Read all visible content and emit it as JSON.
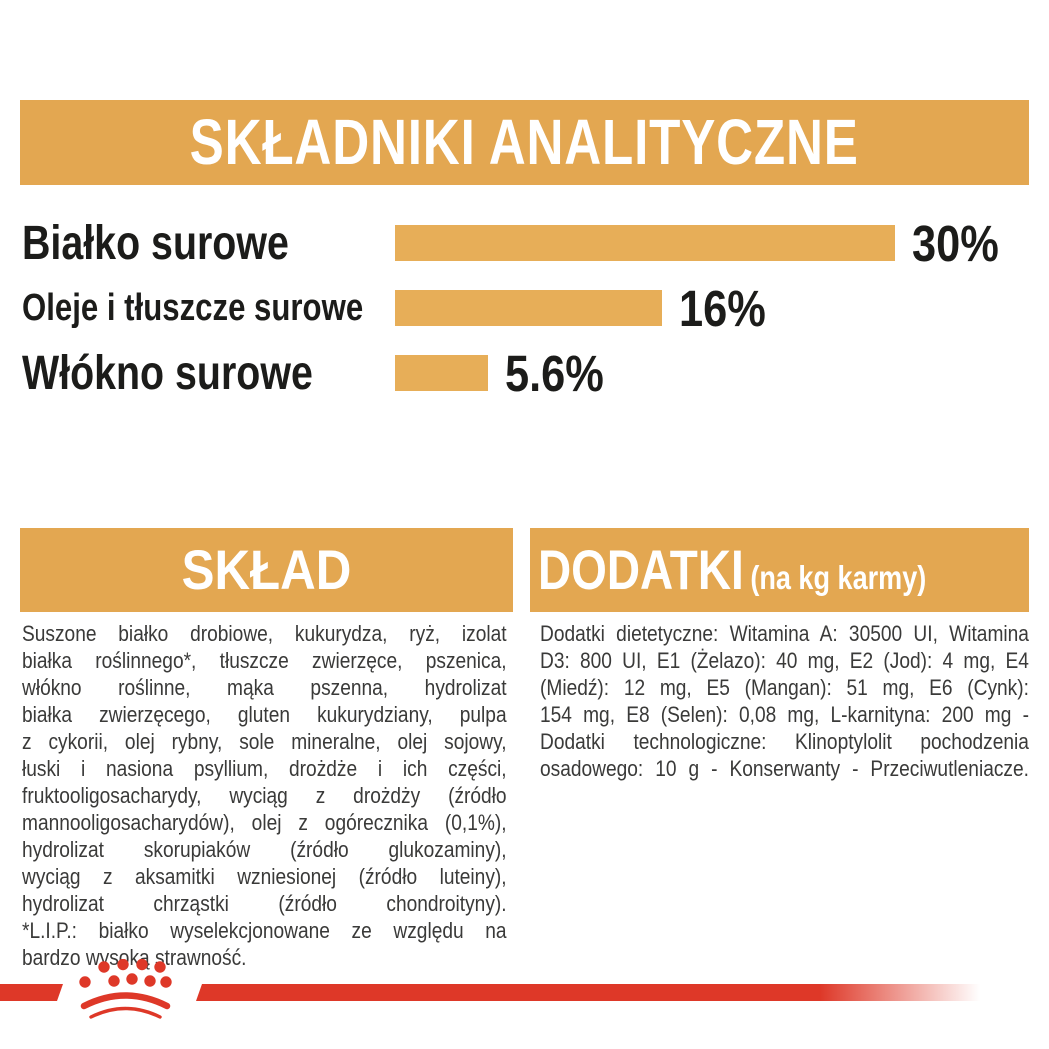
{
  "header": {
    "title": "SKŁADNIKI ANALITYCZNE"
  },
  "chart_data": {
    "type": "bar",
    "orientation": "horizontal",
    "title": "SKŁADNIKI ANALITYCZNE",
    "categories": [
      "Białko surowe",
      "Oleje i tłuszcze surowe",
      "Włókno surowe"
    ],
    "values": [
      30,
      16,
      5.6
    ],
    "value_labels": [
      "30%",
      "16%",
      "5.6%"
    ],
    "unit": "%",
    "xlim": [
      0,
      30
    ],
    "bar_color": "#E7AE58",
    "grid": false,
    "legend": false
  },
  "sklad": {
    "heading": "SKŁAD",
    "lines": [
      "Suszone białko drobiowe, kukurydza, ryż, izolat",
      "białka roślinnego*, tłuszcze zwierzęce, pszenica,",
      "włókno roślinne, mąka pszenna, hydrolizat",
      "białka zwierzęcego, gluten kukurydziany, pulpa",
      "z cykorii, olej rybny, sole mineralne, olej sojowy,",
      "łuski i nasiona psyllium, drożdże i ich części,",
      "fruktooligosacharydy, wyciąg z drożdży (źródło",
      "mannooligosacharydów), olej z ogórecznika (0,1%),",
      "hydrolizat skorupiaków (źródło glukozaminy),",
      "wyciąg z aksamitki wzniesionej (źródło luteiny),",
      "hydrolizat chrząstki (źródło chondroityny).",
      "*L.I.P.: białko wyselekcjonowane ze względu na",
      "bardzo wysoką strawność."
    ]
  },
  "dodatki": {
    "heading": "DODATKI",
    "heading_suffix": "(na kg karmy)",
    "lines": [
      "Dodatki dietetyczne: Witamina A: 30500 UI, Witamina",
      "D3: 800 UI, E1 (Żelazo): 40 mg, E2 (Jod): 4 mg, E4",
      "(Miedź): 12 mg, E5 (Mangan): 51 mg, E6 (Cynk):",
      "154 mg, E8 (Selen): 0,08 mg, L-karnityna: 200 mg -",
      "Dodatki technologiczne: Klinoptylolit pochodzenia",
      "osadowego: 10 g - Konserwanty - Przeciwutleniacze."
    ]
  },
  "footer": {
    "logo_name": "royal-canin-crown"
  },
  "colors": {
    "gold_band": "#E3A751",
    "gold_bar": "#E7AE58",
    "red": "#DE3828",
    "text_dark": "#3A3A39",
    "label_black": "#1C1C1A",
    "white": "#FFFFFF"
  }
}
